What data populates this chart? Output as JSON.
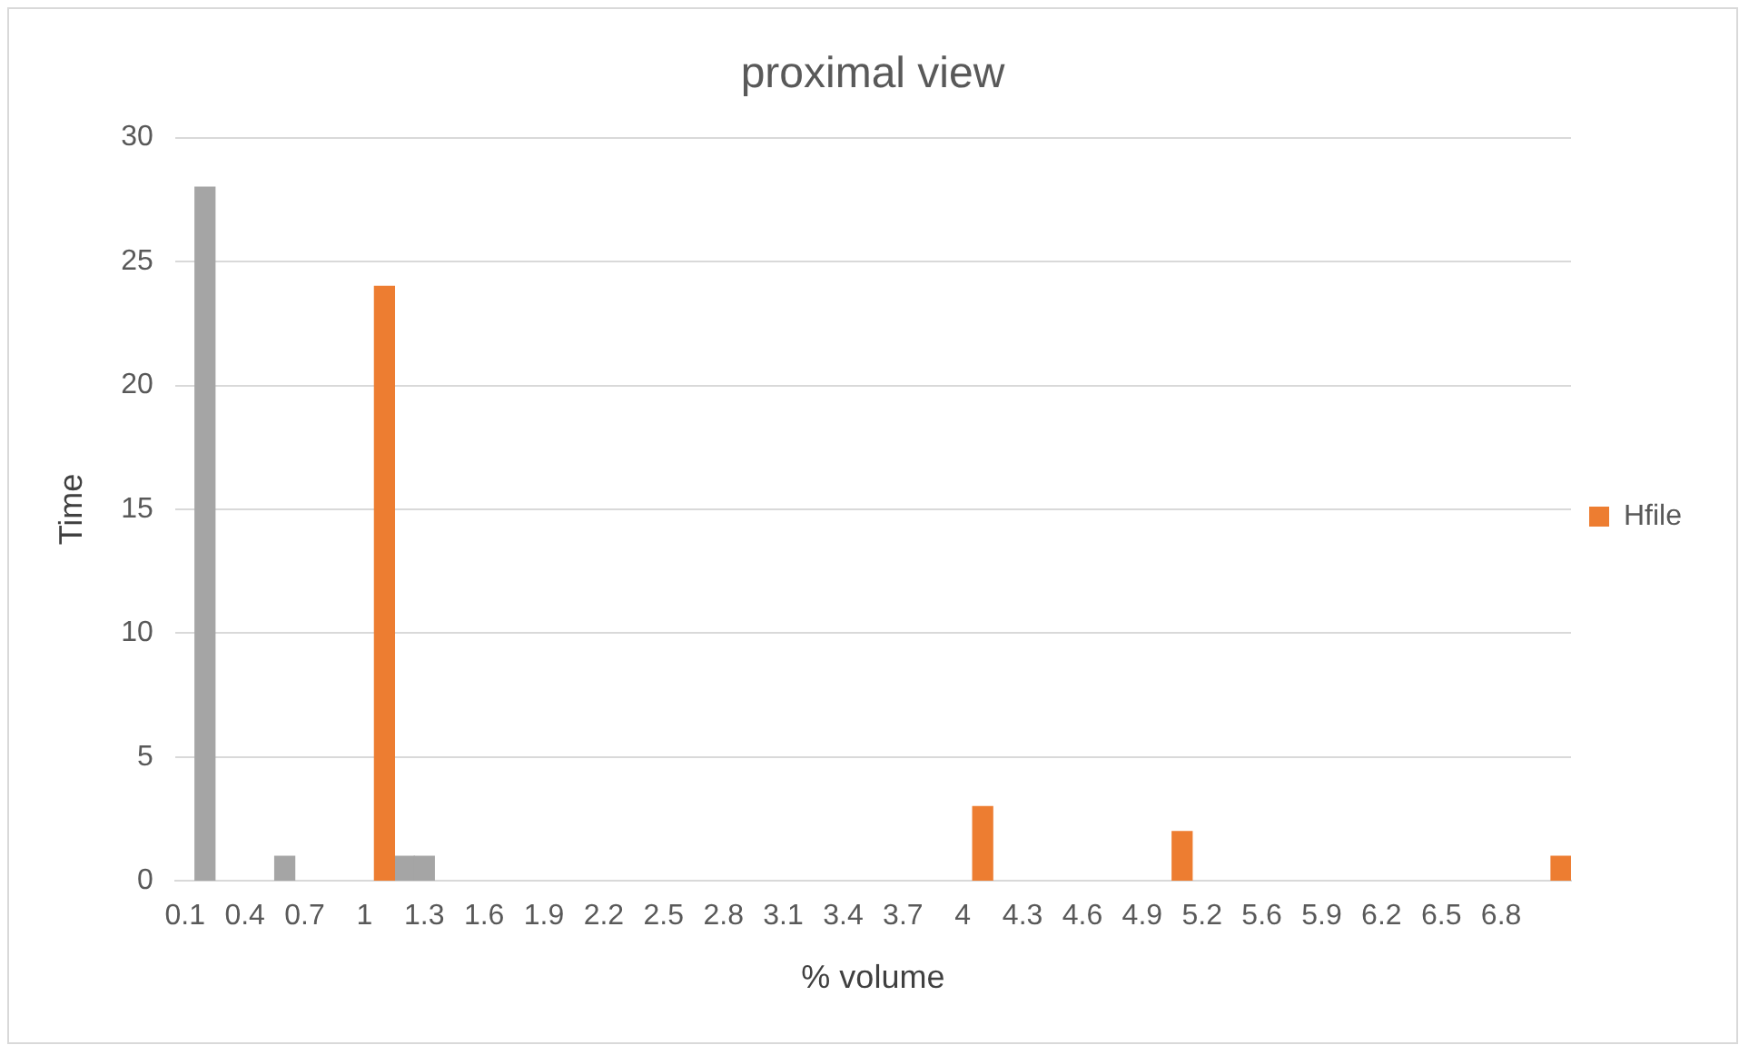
{
  "chart_data": {
    "type": "bar",
    "title": "proximal view",
    "xlabel": "% volume",
    "ylabel": "Time",
    "categories": [
      "0.1",
      null,
      null,
      "0.4",
      null,
      null,
      "0.7",
      null,
      null,
      "1",
      null,
      null,
      "1.3",
      null,
      null,
      "1.6",
      null,
      null,
      "1.9",
      null,
      null,
      "2.2",
      null,
      null,
      "2.5",
      null,
      null,
      "2.8",
      null,
      null,
      "3.1",
      null,
      null,
      "3.4",
      null,
      null,
      "3.7",
      null,
      null,
      "4",
      null,
      null,
      "4.3",
      null,
      null,
      "4.6",
      null,
      null,
      "4.9",
      null,
      null,
      "5.2",
      null,
      null,
      "5.6",
      null,
      null,
      "5.9",
      null,
      null,
      "6.2",
      null,
      null,
      "6.5",
      null,
      null,
      "6.8",
      null,
      null,
      null
    ],
    "series": [
      {
        "name": "Hfile",
        "color": "#ed7d31",
        "values": [
          null,
          null,
          null,
          null,
          null,
          null,
          null,
          null,
          null,
          null,
          24,
          null,
          null,
          null,
          null,
          null,
          null,
          null,
          null,
          null,
          null,
          null,
          null,
          null,
          null,
          null,
          null,
          null,
          null,
          null,
          null,
          null,
          null,
          null,
          null,
          null,
          null,
          null,
          null,
          null,
          3,
          null,
          null,
          null,
          null,
          null,
          null,
          null,
          null,
          null,
          2,
          null,
          null,
          null,
          null,
          null,
          null,
          null,
          null,
          null,
          null,
          null,
          null,
          null,
          null,
          null,
          null,
          null,
          null,
          1
        ]
      },
      {
        "color": "#a5a5a5",
        "values": [
          null,
          28,
          null,
          null,
          null,
          1,
          null,
          null,
          null,
          null,
          null,
          1,
          1,
          null,
          null,
          null,
          null,
          null,
          null,
          null,
          null,
          null,
          null,
          null,
          null,
          null,
          null,
          null,
          null,
          null,
          null,
          null,
          null,
          null,
          null,
          null,
          null,
          null,
          null,
          null,
          null,
          null,
          null,
          null,
          null,
          null,
          null,
          null,
          null,
          null,
          null,
          null,
          null,
          null,
          null,
          null,
          null,
          null,
          null,
          null,
          null,
          null,
          null,
          null,
          null,
          null,
          null,
          null,
          null,
          null
        ]
      }
    ],
    "ylim": [
      0,
      30
    ],
    "yticks": [
      0,
      5,
      10,
      15,
      20,
      25,
      30
    ],
    "grid": "y",
    "legend": "right"
  }
}
